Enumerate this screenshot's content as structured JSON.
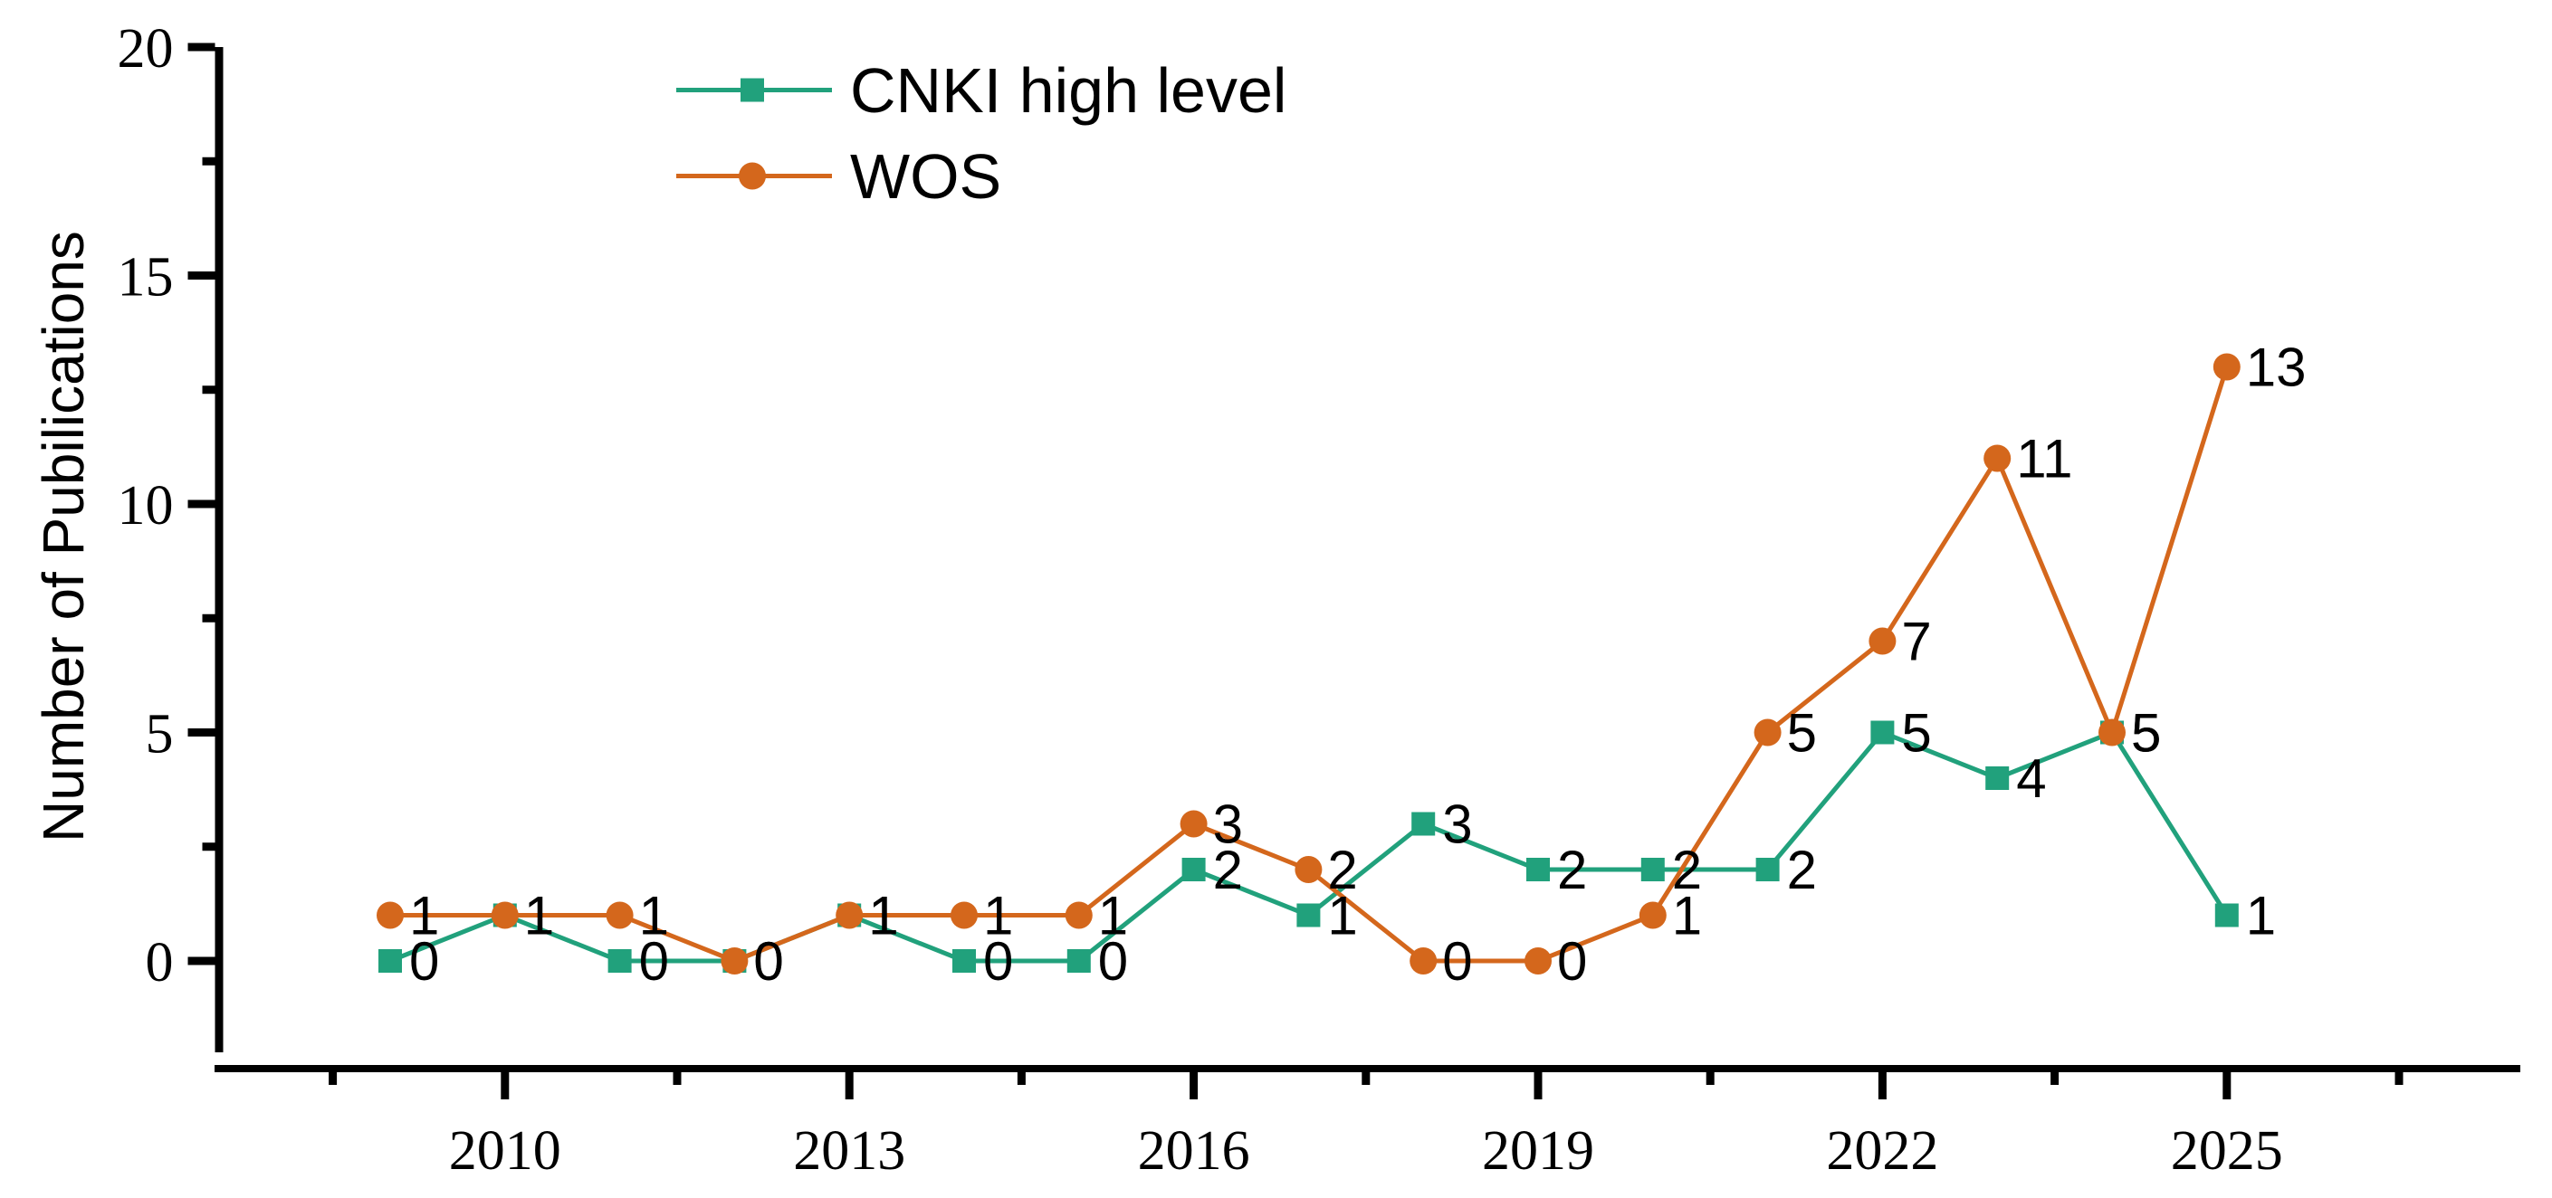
{
  "chart_data": {
    "type": "line",
    "title": "",
    "xlabel": "",
    "ylabel": "Number of Pubilications",
    "x": [
      2009,
      2010,
      2011,
      2012,
      2013,
      2014,
      2015,
      2016,
      2017,
      2018,
      2019,
      2020,
      2021,
      2022,
      2023,
      2024,
      2025
    ],
    "series": [
      {
        "name": "CNKI high level",
        "marker": "square",
        "color": "#21A17C",
        "values": [
          0,
          1,
          0,
          0,
          1,
          0,
          0,
          2,
          1,
          3,
          2,
          2,
          2,
          5,
          4,
          5,
          1
        ]
      },
      {
        "name": "WOS",
        "marker": "circle",
        "color": "#D4671C",
        "values": [
          1,
          1,
          1,
          0,
          1,
          1,
          1,
          3,
          2,
          0,
          0,
          1,
          5,
          7,
          11,
          5,
          13
        ]
      }
    ],
    "point_labels_visible": true,
    "x_major_ticks": [
      2010,
      2013,
      2016,
      2019,
      2022,
      2025
    ],
    "x_minor_ticks": [
      2008.5,
      2011.5,
      2014.5,
      2017.5,
      2020.5,
      2023.5,
      2026.5
    ],
    "y_major_ticks": [
      0,
      5,
      10,
      15,
      20
    ],
    "y_minor_ticks": [
      2.5,
      7.5,
      12.5,
      17.5
    ],
    "xlim": [
      2007.5,
      2027.6
    ],
    "ylim": [
      -2,
      20
    ],
    "grid": false,
    "legend_position": "top-left-inside",
    "axis_color": "#000000",
    "text_color": "#000000",
    "background_color": "#FFFFFF"
  }
}
